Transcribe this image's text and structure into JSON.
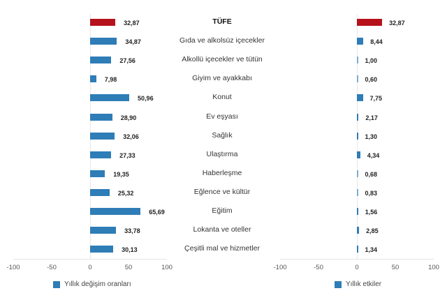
{
  "chart_data": [
    {
      "type": "bar",
      "orientation": "horizontal",
      "title": "",
      "xlabel": "",
      "ylabel": "",
      "xlim": [
        -100,
        100
      ],
      "xticks": [
        "-100",
        "-50",
        "0",
        "50",
        "100"
      ],
      "legend": "Yıllık değişim oranları",
      "categories": [
        "TÜFE",
        "Gıda ve alkolsüz içecekler",
        "Alkollü içecekler ve tütün",
        "Giyim ve ayakkabı",
        "Konut",
        "Ev eşyası",
        "Sağlık",
        "Ulaştırma",
        "Haberleşme",
        "Eğlence ve kültür",
        "Eğitim",
        "Lokanta ve oteller",
        "Çeşitli mal ve hizmetler"
      ],
      "values": [
        32.87,
        34.87,
        27.56,
        7.98,
        50.96,
        28.9,
        32.06,
        27.33,
        19.35,
        25.32,
        65.69,
        33.78,
        30.13
      ],
      "labels": [
        "32,87",
        "34,87",
        "27,56",
        "7,98",
        "50,96",
        "28,90",
        "32,06",
        "27,33",
        "19,35",
        "25,32",
        "65,69",
        "33,78",
        "30,13"
      ]
    },
    {
      "type": "bar",
      "orientation": "horizontal",
      "title": "",
      "xlabel": "",
      "ylabel": "",
      "xlim": [
        -100,
        100
      ],
      "xticks": [
        "-100",
        "-50",
        "0",
        "50",
        "100"
      ],
      "legend": "Yıllık etkiler",
      "categories": [
        "TÜFE",
        "Gıda ve alkolsüz içecekler",
        "Alkollü içecekler ve tütün",
        "Giyim ve ayakkabı",
        "Konut",
        "Ev eşyası",
        "Sağlık",
        "Ulaştırma",
        "Haberleşme",
        "Eğlence ve kültür",
        "Eğitim",
        "Lokanta ve oteller",
        "Çeşitli mal ve hizmetler"
      ],
      "values": [
        32.87,
        8.44,
        1.0,
        0.6,
        7.75,
        2.17,
        1.3,
        4.34,
        0.68,
        0.83,
        1.56,
        2.85,
        1.34
      ],
      "labels": [
        "32,87",
        "8,44",
        "1,00",
        "0,60",
        "7,75",
        "2,17",
        "1,30",
        "4,34",
        "0,68",
        "0,83",
        "1,56",
        "2,85",
        "1,34"
      ]
    }
  ],
  "colors": {
    "highlight": "#B5121B",
    "series": "#2E7DB7"
  },
  "left_panel": {
    "legend": "Yıllık değişim oranları",
    "ticks": [
      "-100",
      "-50",
      "0",
      "50",
      "100"
    ]
  },
  "right_panel": {
    "legend": "Yıllık etkiler",
    "ticks": [
      "-100",
      "-50",
      "0",
      "50",
      "100"
    ]
  },
  "categories": [
    "TÜFE",
    "Gıda ve alkolsüz içecekler",
    "Alkollü içecekler ve tütün",
    "Giyim ve ayakkabı",
    "Konut",
    "Ev eşyası",
    "Sağlık",
    "Ulaştırma",
    "Haberleşme",
    "Eğlence ve kültür",
    "Eğitim",
    "Lokanta ve oteller",
    "Çeşitli mal ve hizmetler"
  ]
}
